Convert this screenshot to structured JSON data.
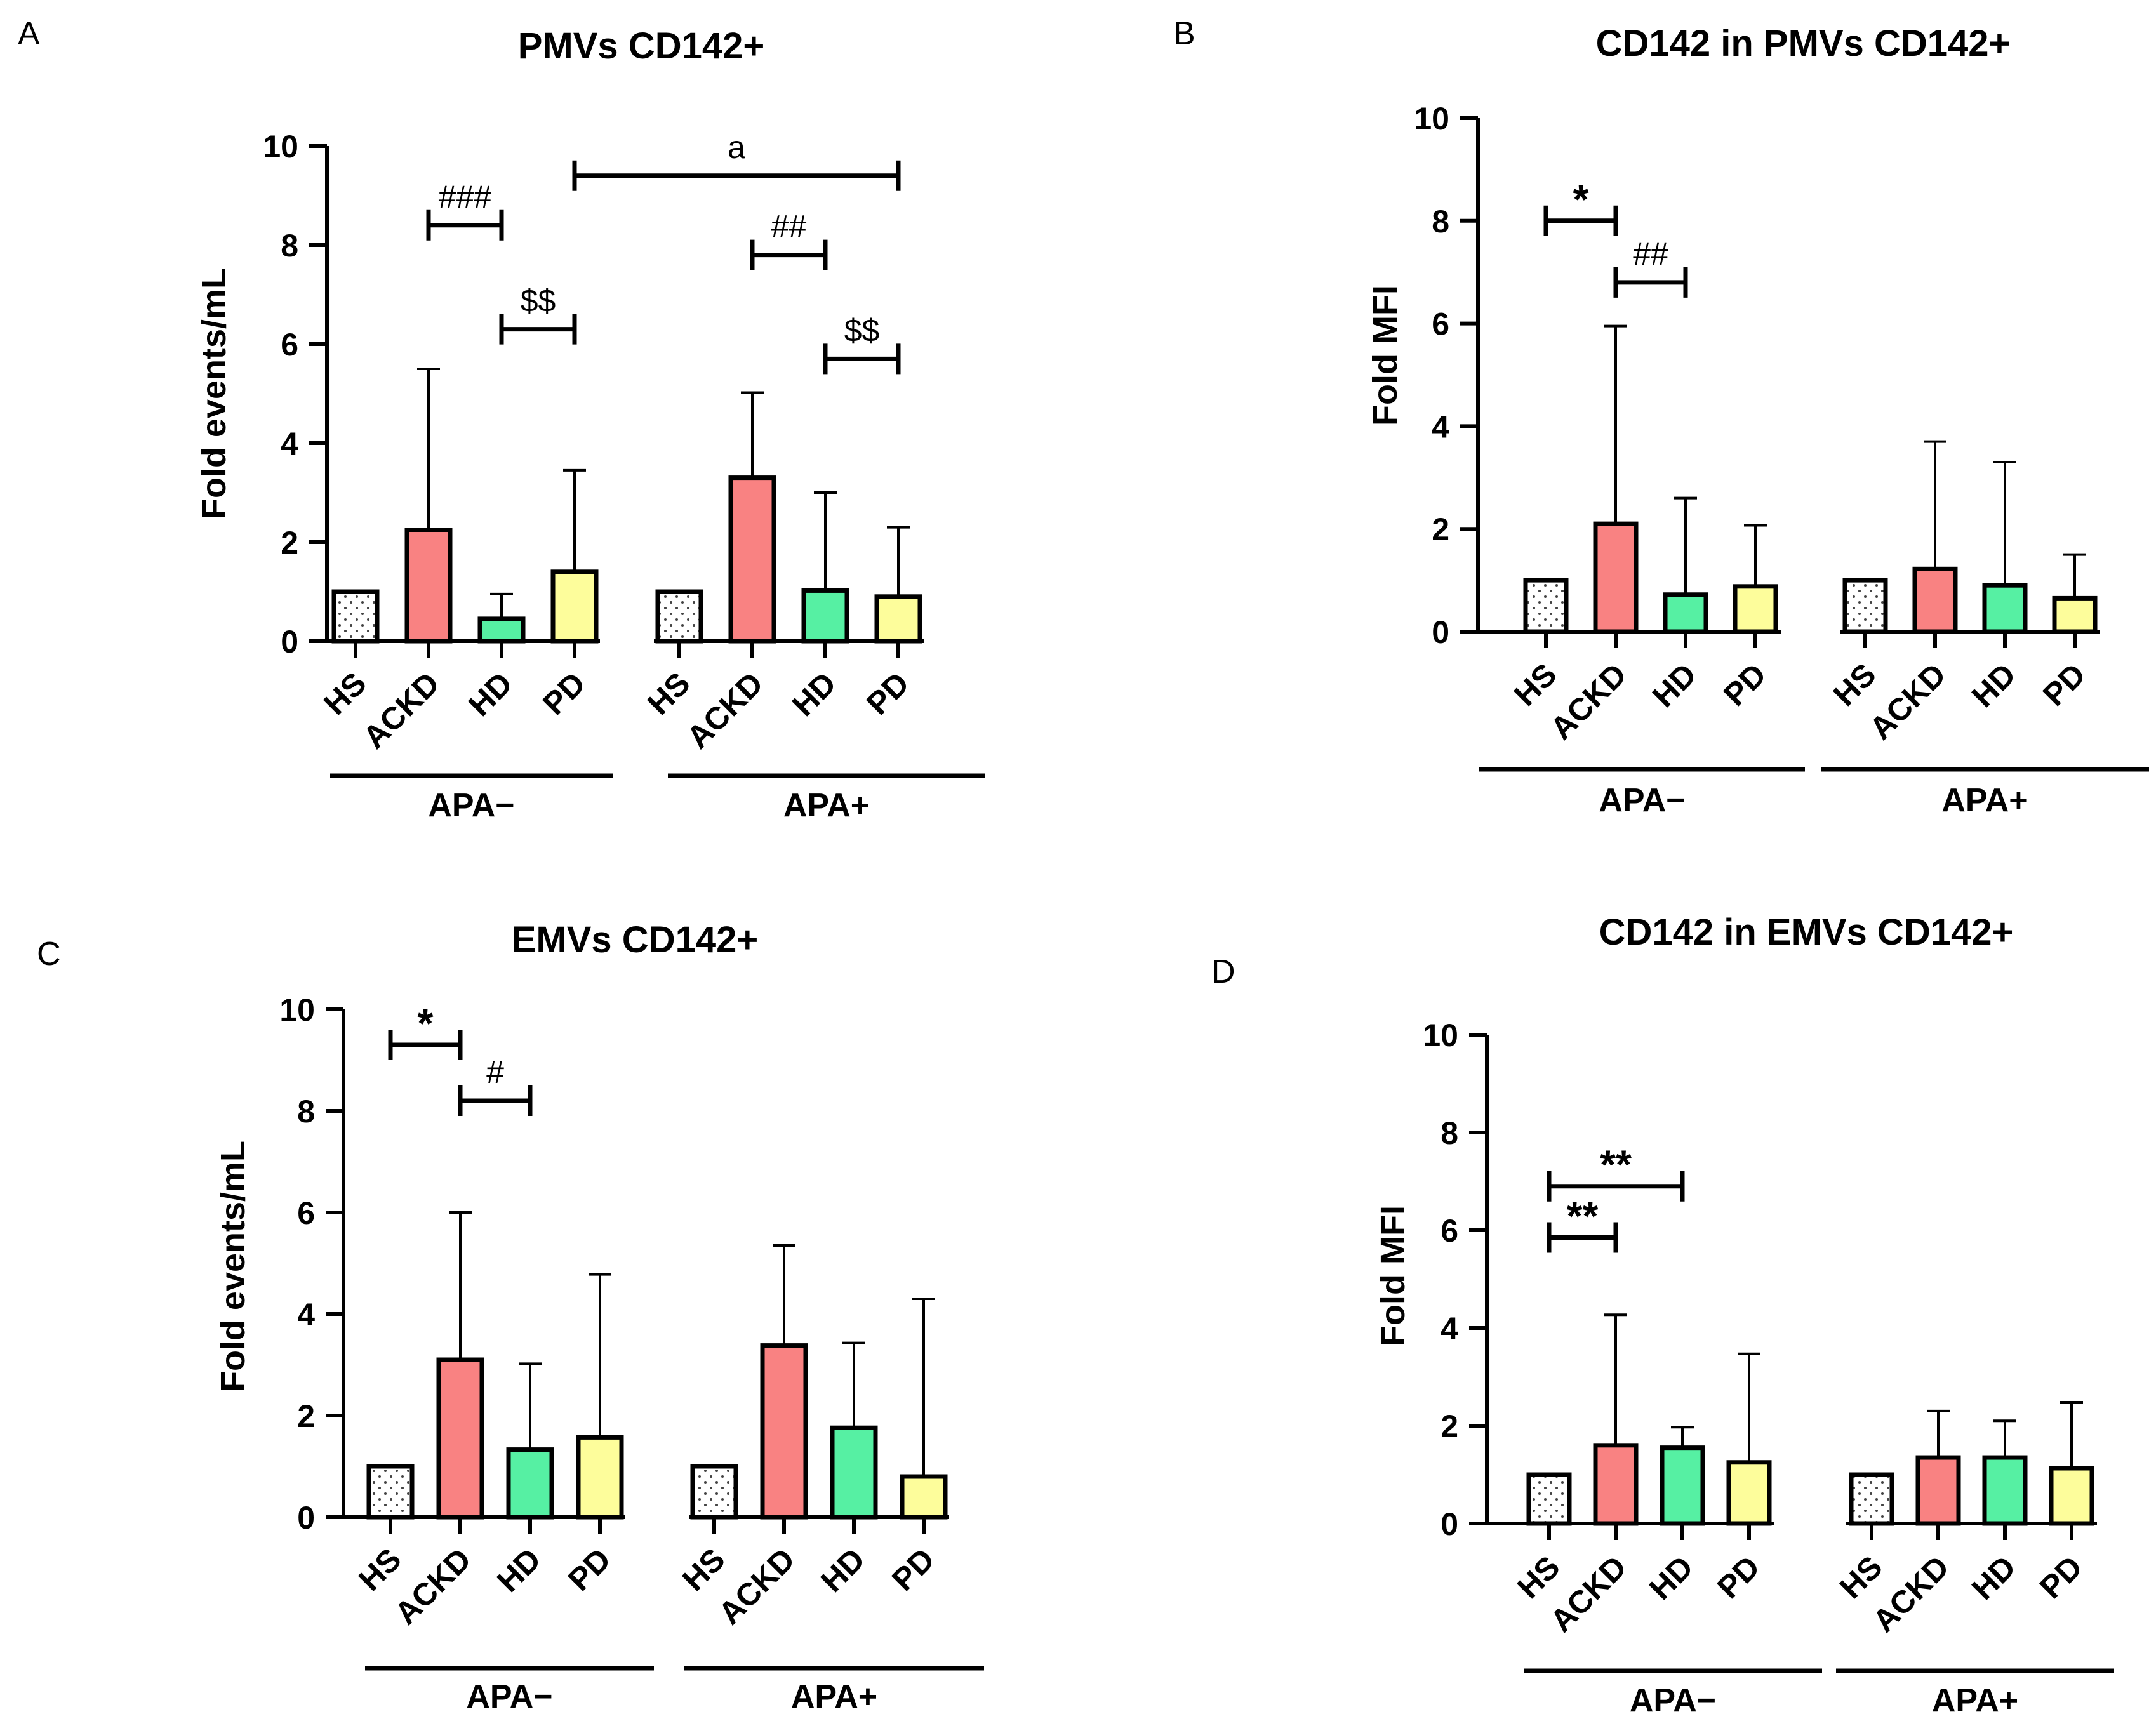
{
  "colors": {
    "HS": "#ffffff",
    "ACKD": "#f98282",
    "HD": "#56f0a3",
    "PD": "#fdfd9b",
    "stroke": "#000000"
  },
  "chart_data": [
    {
      "panel": "A",
      "type": "bar",
      "title": "PMVs CD142+",
      "ylabel": "Fold events/mL",
      "ylim": [
        0,
        10
      ],
      "yticks": [
        "0",
        "2",
        "4",
        "6",
        "8",
        "10"
      ],
      "categories": [
        "HS",
        "ACKD",
        "HD",
        "PD"
      ],
      "groups": [
        {
          "name": "APA−",
          "values": [
            1.0,
            2.25,
            0.45,
            1.4
          ],
          "errors": [
            0,
            5.5,
            0.95,
            3.45
          ]
        },
        {
          "name": "APA+",
          "values": [
            1.0,
            3.3,
            1.02,
            0.9
          ],
          "errors": [
            0,
            5.02,
            3.0,
            2.3
          ]
        }
      ],
      "significance": [
        {
          "label": "###",
          "from": [
            0,
            1
          ],
          "to": [
            0,
            2
          ],
          "y": 8.4
        },
        {
          "label": "$$",
          "from": [
            0,
            2
          ],
          "to": [
            0,
            3
          ],
          "y": 6.3
        },
        {
          "label": "a",
          "from": [
            0,
            3
          ],
          "to": [
            1,
            3
          ],
          "y": 9.4
        },
        {
          "label": "##",
          "from": [
            1,
            1
          ],
          "to": [
            1,
            2
          ],
          "y": 7.8
        },
        {
          "label": "$$",
          "from": [
            1,
            2
          ],
          "to": [
            1,
            3
          ],
          "y": 5.7
        }
      ]
    },
    {
      "panel": "B",
      "type": "bar",
      "title": "CD142 in PMVs CD142+",
      "ylabel": "Fold MFI",
      "ylim": [
        0,
        10
      ],
      "yticks": [
        "0",
        "2",
        "4",
        "6",
        "8",
        "10"
      ],
      "categories": [
        "HS",
        "ACKD",
        "HD",
        "PD"
      ],
      "groups": [
        {
          "name": "APA−",
          "values": [
            1.0,
            2.1,
            0.72,
            0.88
          ],
          "errors": [
            0,
            5.95,
            2.6,
            2.07
          ]
        },
        {
          "name": "APA+",
          "values": [
            1.0,
            1.22,
            0.9,
            0.65
          ],
          "errors": [
            0,
            3.7,
            3.3,
            1.5
          ]
        }
      ],
      "significance": [
        {
          "label": "*",
          "from": [
            0,
            0
          ],
          "to": [
            0,
            1
          ],
          "y": 8.0
        },
        {
          "label": "##",
          "from": [
            0,
            1
          ],
          "to": [
            0,
            2
          ],
          "y": 6.8
        }
      ]
    },
    {
      "panel": "C",
      "type": "bar",
      "title": "EMVs CD142+",
      "ylabel": "Fold events/mL",
      "ylim": [
        0,
        10
      ],
      "yticks": [
        "0",
        "2",
        "4",
        "6",
        "8",
        "10"
      ],
      "categories": [
        "HS",
        "ACKD",
        "HD",
        "PD"
      ],
      "groups": [
        {
          "name": "APA−",
          "values": [
            1.0,
            3.1,
            1.33,
            1.57
          ],
          "errors": [
            0,
            6.0,
            3.02,
            4.78
          ]
        },
        {
          "name": "APA+",
          "values": [
            1.0,
            3.38,
            1.76,
            0.8
          ],
          "errors": [
            0,
            5.35,
            3.43,
            4.3
          ]
        }
      ],
      "significance": [
        {
          "label": "*",
          "from": [
            0,
            0
          ],
          "to": [
            0,
            1
          ],
          "y": 9.3
        },
        {
          "label": "#",
          "from": [
            0,
            1
          ],
          "to": [
            0,
            2
          ],
          "y": 8.2
        }
      ]
    },
    {
      "panel": "D",
      "type": "bar",
      "title": "CD142 in EMVs CD142+",
      "ylabel": "Fold MFI",
      "ylim": [
        0,
        10
      ],
      "yticks": [
        "0",
        "2",
        "4",
        "6",
        "8",
        "10"
      ],
      "categories": [
        "HS",
        "ACKD",
        "HD",
        "PD"
      ],
      "groups": [
        {
          "name": "APA−",
          "values": [
            1.0,
            1.6,
            1.55,
            1.25
          ],
          "errors": [
            0,
            4.27,
            1.97,
            3.47
          ]
        },
        {
          "name": "APA+",
          "values": [
            1.0,
            1.35,
            1.35,
            1.13
          ],
          "errors": [
            0,
            2.3,
            2.1,
            2.48
          ]
        }
      ],
      "significance": [
        {
          "label": "**",
          "from": [
            0,
            0
          ],
          "to": [
            0,
            1
          ],
          "y": 5.85
        },
        {
          "label": "**",
          "from": [
            0,
            0
          ],
          "to": [
            0,
            2
          ],
          "y": 6.9
        }
      ]
    }
  ]
}
